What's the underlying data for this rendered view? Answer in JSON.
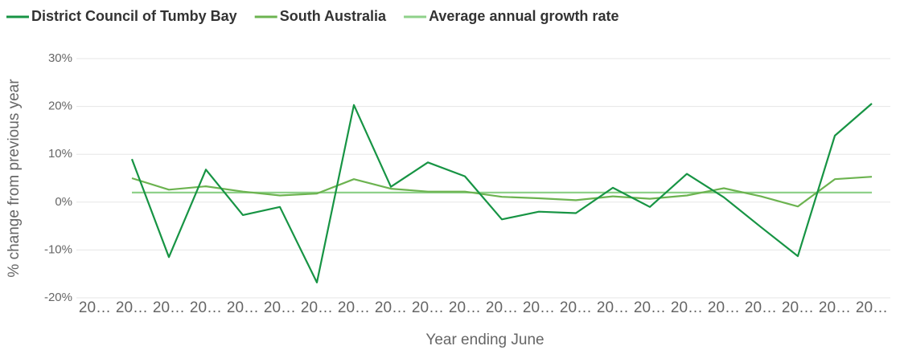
{
  "chart_data": {
    "type": "line",
    "xlabel": "Year ending June",
    "ylabel": "% change from previous year",
    "categories": [
      "20…",
      "20…",
      "20…",
      "20…",
      "20…",
      "20…",
      "20…",
      "20…",
      "20…",
      "20…",
      "20…",
      "20…",
      "20…",
      "20…",
      "20…",
      "20…",
      "20…",
      "20…",
      "20…",
      "20…",
      "20…",
      "20…"
    ],
    "series": [
      {
        "name": "District Council of Tumby Bay",
        "color": "#179444",
        "values": [
          null,
          9.0,
          -11.5,
          6.8,
          -2.7,
          -1.0,
          -16.8,
          20.3,
          3.2,
          8.3,
          5.4,
          -3.6,
          -2.0,
          -2.3,
          3.0,
          -1.0,
          5.9,
          1.0,
          -5.2,
          -11.3,
          13.9,
          20.6
        ]
      },
      {
        "name": "South Australia",
        "color": "#6cb350",
        "values": [
          null,
          5.0,
          2.6,
          3.3,
          2.2,
          1.4,
          1.8,
          4.8,
          2.8,
          2.2,
          2.2,
          1.1,
          0.8,
          0.4,
          1.2,
          0.7,
          1.4,
          2.9,
          1.2,
          -0.9,
          4.8,
          5.3
        ]
      },
      {
        "name": "Average annual growth rate",
        "color": "#8fd18a",
        "values": [
          null,
          2.0,
          2.0,
          2.0,
          2.0,
          2.0,
          2.0,
          2.0,
          2.0,
          2.0,
          2.0,
          2.0,
          2.0,
          2.0,
          2.0,
          2.0,
          2.0,
          2.0,
          2.0,
          2.0,
          2.0,
          2.0
        ]
      }
    ],
    "ylim": [
      -20,
      30
    ],
    "yticks": [
      {
        "value": -20,
        "label": "-20%"
      },
      {
        "value": -10,
        "label": "-10%"
      },
      {
        "value": 0,
        "label": "0%"
      },
      {
        "value": 10,
        "label": "10%"
      },
      {
        "value": 20,
        "label": "20%"
      },
      {
        "value": 30,
        "label": "30%"
      }
    ],
    "grid": true
  }
}
